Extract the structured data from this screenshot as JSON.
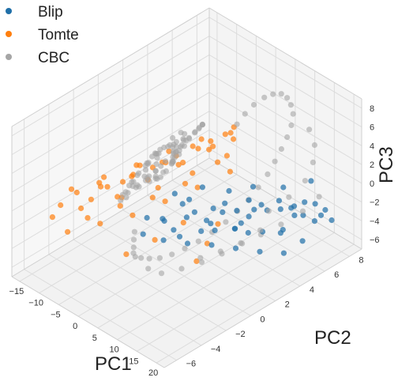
{
  "chart_data": {
    "type": "scatter",
    "projection": "3d",
    "xlabel": "PC1",
    "ylabel": "PC2",
    "zlabel": "PC3",
    "xlim": [
      -17,
      22
    ],
    "ylim": [
      -7,
      9
    ],
    "zlim": [
      -7,
      9
    ],
    "x_ticks": [
      -15,
      -10,
      -5,
      0,
      5,
      10,
      15,
      20
    ],
    "y_ticks": [
      -6,
      -4,
      -2,
      0,
      2,
      4,
      6,
      8
    ],
    "z_ticks": [
      -6,
      -4,
      -2,
      0,
      2,
      4,
      6,
      8
    ],
    "grid": true,
    "legend": "top-left",
    "series": [
      {
        "name": "Blip",
        "color": "#1f6fa8",
        "alpha": 0.7,
        "points": [
          [
            0.2,
            -1.5,
            -0.8
          ],
          [
            1.5,
            -0.5,
            -1.6
          ],
          [
            3.0,
            0.5,
            -0.2
          ],
          [
            4.5,
            1.0,
            -1.1
          ],
          [
            6.0,
            1.5,
            -2.0
          ],
          [
            7.5,
            2.5,
            -0.6
          ],
          [
            9.0,
            3.0,
            -1.4
          ],
          [
            10.5,
            3.5,
            -0.3
          ],
          [
            12.0,
            4.5,
            -1.8
          ],
          [
            13.5,
            5.0,
            -0.8
          ],
          [
            15.0,
            5.5,
            -1.6
          ],
          [
            16.5,
            6.0,
            -2.4
          ],
          [
            18.0,
            6.5,
            -1.2
          ],
          [
            19.0,
            7.0,
            -2.0
          ],
          [
            20.0,
            7.2,
            -3.0
          ],
          [
            2.0,
            -0.8,
            -1.0
          ],
          [
            5.0,
            0.2,
            -0.9
          ],
          [
            8.0,
            1.2,
            -1.6
          ],
          [
            11.0,
            2.2,
            -2.2
          ],
          [
            14.0,
            3.5,
            -2.8
          ],
          [
            17.0,
            4.2,
            -2.4
          ],
          [
            19.5,
            5.0,
            -3.6
          ],
          [
            1.0,
            0.5,
            0.4
          ],
          [
            4.0,
            1.8,
            0.8
          ],
          [
            7.0,
            3.0,
            0.2
          ],
          [
            10.0,
            4.0,
            0.6
          ],
          [
            13.0,
            5.5,
            0.1
          ],
          [
            16.0,
            6.8,
            0.5
          ],
          [
            3.5,
            -1.2,
            -2.6
          ],
          [
            6.5,
            -0.2,
            -3.0
          ],
          [
            9.5,
            0.8,
            -3.2
          ],
          [
            12.5,
            1.8,
            -3.6
          ],
          [
            15.5,
            2.8,
            -4.0
          ],
          [
            18.5,
            3.8,
            -4.2
          ],
          [
            0.8,
            -2.0,
            -2.0
          ],
          [
            5.5,
            2.2,
            -1.4
          ],
          [
            8.5,
            2.0,
            -0.9
          ],
          [
            11.5,
            4.2,
            -1.1
          ],
          [
            14.5,
            4.8,
            -1.3
          ],
          [
            17.5,
            5.8,
            -0.6
          ],
          [
            2.5,
            1.2,
            -0.4
          ],
          [
            6.8,
            0.8,
            -2.4
          ],
          [
            9.8,
            2.6,
            -2.8
          ],
          [
            12.8,
            3.2,
            -0.5
          ],
          [
            15.8,
            4.4,
            -3.2
          ],
          [
            18.8,
            6.2,
            -2.6
          ],
          [
            4.2,
            -0.6,
            -1.8
          ],
          [
            7.8,
            1.6,
            -2.7
          ],
          [
            10.8,
            3.4,
            -1.9
          ],
          [
            13.8,
            2.4,
            -2.1
          ],
          [
            16.8,
            5.2,
            -1.7
          ],
          [
            19.8,
            6.4,
            -1.9
          ],
          [
            3.2,
            0.2,
            -3.4
          ],
          [
            8.2,
            3.6,
            -3.4
          ],
          [
            14.2,
            6.0,
            -2.0
          ]
        ]
      },
      {
        "name": "Tomte",
        "color": "#ff7f0e",
        "alpha": 0.7,
        "points": [
          [
            -14.0,
            -4.0,
            -1.0
          ],
          [
            -13.0,
            -3.0,
            -0.2
          ],
          [
            -12.5,
            -2.0,
            -1.6
          ],
          [
            -11.5,
            -1.0,
            -0.8
          ],
          [
            -10.5,
            -0.5,
            -2.0
          ],
          [
            -10.0,
            0.5,
            -0.5
          ],
          [
            -9.0,
            1.5,
            -1.4
          ],
          [
            -8.5,
            2.5,
            -0.2
          ],
          [
            -7.5,
            3.5,
            -1.0
          ],
          [
            -7.0,
            4.5,
            0.3
          ],
          [
            -6.0,
            5.5,
            -0.6
          ],
          [
            -5.0,
            6.5,
            0.5
          ],
          [
            -4.5,
            7.0,
            -0.3
          ],
          [
            -13.5,
            -2.5,
            -2.4
          ],
          [
            -12.0,
            -1.5,
            -0.1
          ],
          [
            -11.0,
            0.0,
            -2.6
          ],
          [
            -9.5,
            1.0,
            0.4
          ],
          [
            -8.0,
            2.0,
            -2.4
          ],
          [
            -6.5,
            3.0,
            0.6
          ],
          [
            -5.5,
            4.0,
            -1.8
          ],
          [
            -4.0,
            5.0,
            1.2
          ],
          [
            -3.0,
            6.0,
            -0.9
          ],
          [
            -14.5,
            -4.5,
            -2.0
          ],
          [
            -12.8,
            -3.5,
            0.6
          ],
          [
            -11.8,
            -2.5,
            -3.0
          ],
          [
            -10.8,
            -1.5,
            0.8
          ],
          [
            -9.8,
            -0.5,
            -2.8
          ],
          [
            -8.8,
            0.5,
            1.0
          ],
          [
            -7.8,
            1.5,
            -3.0
          ],
          [
            -6.8,
            2.5,
            1.4
          ],
          [
            -5.8,
            3.5,
            -2.6
          ],
          [
            -4.8,
            4.5,
            1.6
          ],
          [
            -3.8,
            5.5,
            -1.4
          ],
          [
            -2.8,
            6.5,
            1.8
          ],
          [
            -13.2,
            -1.0,
            -1.2
          ],
          [
            -11.2,
            1.0,
            -1.0
          ],
          [
            -9.2,
            3.0,
            -0.8
          ],
          [
            -7.2,
            5.0,
            -0.4
          ],
          [
            -5.2,
            7.0,
            0.2
          ],
          [
            -12.2,
            -4.0,
            -3.4
          ],
          [
            -10.2,
            -2.0,
            -3.6
          ],
          [
            -8.2,
            0.0,
            -3.8
          ],
          [
            -6.2,
            2.0,
            -3.4
          ],
          [
            -4.2,
            4.0,
            -3.0
          ],
          [
            -2.2,
            6.0,
            -2.4
          ],
          [
            -1.5,
            2.0,
            -4.5
          ],
          [
            -2.5,
            0.0,
            -5.0
          ],
          [
            -3.5,
            -2.0,
            -5.2
          ],
          [
            1.0,
            4.0,
            -5.6
          ],
          [
            3.0,
            2.5,
            -6.0
          ],
          [
            5.0,
            1.0,
            -6.2
          ],
          [
            -8.6,
            4.2,
            -1.6
          ],
          [
            -6.6,
            6.0,
            -0.8
          ],
          [
            -10.6,
            2.4,
            -1.2
          ],
          [
            -12.6,
            0.6,
            -1.8
          ]
        ]
      },
      {
        "name": "CBC",
        "color": "#a5a5a5",
        "alpha": 0.6,
        "points": [
          [
            3.0,
            0.0,
            6.8
          ],
          [
            2.57,
            0.69,
            6.47
          ],
          [
            1.35,
            1.3,
            5.52
          ],
          [
            -0.44,
            1.73,
            4.13
          ],
          [
            -2.46,
            1.95,
            2.57
          ],
          [
            -4.31,
            1.93,
            1.13
          ],
          [
            -5.66,
            1.68,
            0.08
          ],
          [
            -6.23,
            1.24,
            -0.36
          ],
          [
            -5.91,
            0.64,
            -0.11
          ],
          [
            -4.73,
            -0.04,
            0.8
          ],
          [
            -2.89,
            -0.72,
            2.23
          ],
          [
            -0.7,
            -1.32,
            3.94
          ],
          [
            1.42,
            -1.76,
            5.59
          ],
          [
            2.97,
            -1.96,
            6.78
          ],
          [
            3.52,
            -1.89,
            7.21
          ],
          [
            2.92,
            -1.56,
            6.74
          ],
          [
            1.31,
            -1.02,
            5.49
          ],
          [
            -0.96,
            -0.36,
            3.73
          ],
          [
            -3.38,
            0.34,
            1.85
          ],
          [
            -5.45,
            1.0,
            0.24
          ],
          [
            -6.74,
            1.52,
            -0.76
          ],
          [
            -6.92,
            1.86,
            -0.9
          ],
          [
            -5.86,
            1.98,
            -0.08
          ],
          [
            -3.74,
            1.85,
            1.57
          ],
          [
            -0.98,
            1.5,
            3.71
          ],
          [
            1.85,
            0.96,
            5.93
          ],
          [
            4.16,
            0.29,
            7.72
          ],
          [
            5.46,
            -0.41,
            8.73
          ],
          [
            5.33,
            -1.04,
            8.63
          ],
          [
            3.7,
            -1.54,
            7.37
          ],
          [
            0.96,
            -1.86,
            5.24
          ],
          [
            -2.18,
            -1.97,
            2.8
          ],
          [
            -4.93,
            -1.84,
            0.66
          ],
          [
            -6.61,
            -1.48,
            -0.64
          ],
          [
            -6.85,
            -0.94,
            -0.83
          ],
          [
            -5.66,
            -0.29,
            0.1
          ],
          [
            -3.45,
            0.37,
            1.81
          ],
          [
            -0.83,
            0.98,
            3.85
          ],
          [
            1.56,
            1.48,
            5.71
          ],
          [
            3.12,
            1.82,
            6.92
          ],
          [
            3.52,
            1.96,
            7.23
          ],
          [
            2.79,
            1.89,
            6.66
          ],
          [
            1.18,
            1.62,
            5.41
          ],
          [
            -0.86,
            1.16,
            3.83
          ],
          [
            -2.8,
            0.58,
            2.32
          ],
          [
            -4.18,
            -0.09,
            1.25
          ],
          [
            -4.63,
            -0.75,
            0.9
          ],
          [
            -4.0,
            -1.32,
            1.39
          ],
          [
            -2.45,
            -1.75,
            2.59
          ],
          [
            -0.42,
            -1.97,
            4.17
          ],
          [
            1.57,
            -1.94,
            5.72
          ],
          [
            3.04,
            -1.67,
            6.86
          ],
          [
            3.62,
            -1.2,
            7.31
          ],
          [
            3.18,
            -0.59,
            6.97
          ],
          [
            1.82,
            0.07,
            5.91
          ],
          [
            -0.1,
            0.74,
            4.42
          ],
          [
            -2.07,
            1.32,
            2.89
          ],
          [
            -3.58,
            1.74,
            1.71
          ],
          [
            -4.26,
            1.96,
            1.19
          ],
          [
            -3.95,
            1.94,
            1.43
          ],
          [
            -2.7,
            1.68,
            2.4
          ],
          [
            -0.86,
            1.22,
            3.83
          ],
          [
            1.06,
            0.62,
            5.32
          ],
          [
            2.5,
            -0.05,
            6.44
          ],
          [
            3.06,
            -0.71,
            6.87
          ],
          [
            2.56,
            -1.29,
            6.48
          ],
          [
            1.14,
            -1.72,
            5.38
          ],
          [
            -0.84,
            -1.95,
            3.84
          ],
          [
            -2.92,
            -1.95,
            2.22
          ],
          [
            -4.6,
            -1.7,
            0.92
          ],
          [
            -5.45,
            -1.25,
            0.26
          ],
          [
            -5.24,
            -0.66,
            0.42
          ],
          [
            -3.98,
            0.0,
            1.4
          ],
          [
            -1.92,
            0.67,
            3.0
          ],
          [
            0.4,
            1.27,
            4.81
          ],
          [
            2.4,
            1.71,
            6.36
          ],
          [
            3.54,
            1.94,
            7.25
          ],
          [
            3.5,
            1.95,
            7.21
          ],
          [
            2.24,
            1.72,
            6.24
          ],
          [
            0.05,
            1.28,
            4.53
          ],
          [
            2.4,
            -3.2,
            -0.4
          ],
          [
            1.6,
            -3.0,
            -1.6
          ],
          [
            0.6,
            -2.7,
            -2.9
          ],
          [
            -0.4,
            -2.4,
            -4.0
          ],
          [
            -1.2,
            -2.0,
            -4.9
          ],
          [
            -1.6,
            -1.4,
            -5.6
          ],
          [
            -1.4,
            -0.8,
            -6.1
          ],
          [
            -0.6,
            -0.2,
            -6.3
          ],
          [
            0.6,
            0.4,
            -6.1
          ],
          [
            2.0,
            1.0,
            -5.6
          ],
          [
            3.6,
            1.6,
            -4.9
          ],
          [
            5.2,
            2.2,
            -4.0
          ],
          [
            6.8,
            2.8,
            -3.0
          ],
          [
            8.2,
            3.3,
            -1.9
          ],
          [
            9.4,
            3.8,
            -0.8
          ],
          [
            10.4,
            4.3,
            0.4
          ],
          [
            11.2,
            4.8,
            1.6
          ],
          [
            11.8,
            5.2,
            2.8
          ],
          [
            12.2,
            5.6,
            3.9
          ],
          [
            12.4,
            6.0,
            4.9
          ],
          [
            12.2,
            6.4,
            5.8
          ],
          [
            11.4,
            6.8,
            6.5
          ],
          [
            10.2,
            7.0,
            7.0
          ],
          [
            8.6,
            7.2,
            7.2
          ],
          [
            6.8,
            7.3,
            7.1
          ],
          [
            5.0,
            7.2,
            6.7
          ],
          [
            3.4,
            7.0,
            6.1
          ],
          [
            2.0,
            6.6,
            5.3
          ],
          [
            1.0,
            6.2,
            4.4
          ],
          [
            0.2,
            5.8,
            3.4
          ],
          [
            14.0,
            4.0,
            -1.0
          ],
          [
            15.0,
            3.0,
            -2.0
          ],
          [
            13.5,
            2.0,
            -3.0
          ],
          [
            11.5,
            1.0,
            -3.8
          ],
          [
            9.5,
            0.0,
            -4.4
          ],
          [
            7.5,
            -1.0,
            -4.8
          ],
          [
            5.5,
            -2.0,
            -5.0
          ],
          [
            4.0,
            -2.6,
            -4.4
          ],
          [
            16.0,
            5.0,
            0.2
          ],
          [
            17.0,
            6.0,
            1.4
          ],
          [
            16.5,
            6.8,
            2.6
          ],
          [
            15.0,
            7.4,
            3.6
          ],
          [
            13.0,
            7.6,
            4.6
          ],
          [
            18.0,
            5.5,
            -1.2
          ],
          [
            19.0,
            6.5,
            -0.2
          ],
          [
            6.0,
            1.0,
            -5.6
          ],
          [
            8.0,
            2.0,
            -5.2
          ],
          [
            10.0,
            3.0,
            -4.6
          ],
          [
            12.0,
            4.0,
            -4.0
          ],
          [
            14.0,
            5.0,
            -3.2
          ]
        ]
      }
    ]
  }
}
